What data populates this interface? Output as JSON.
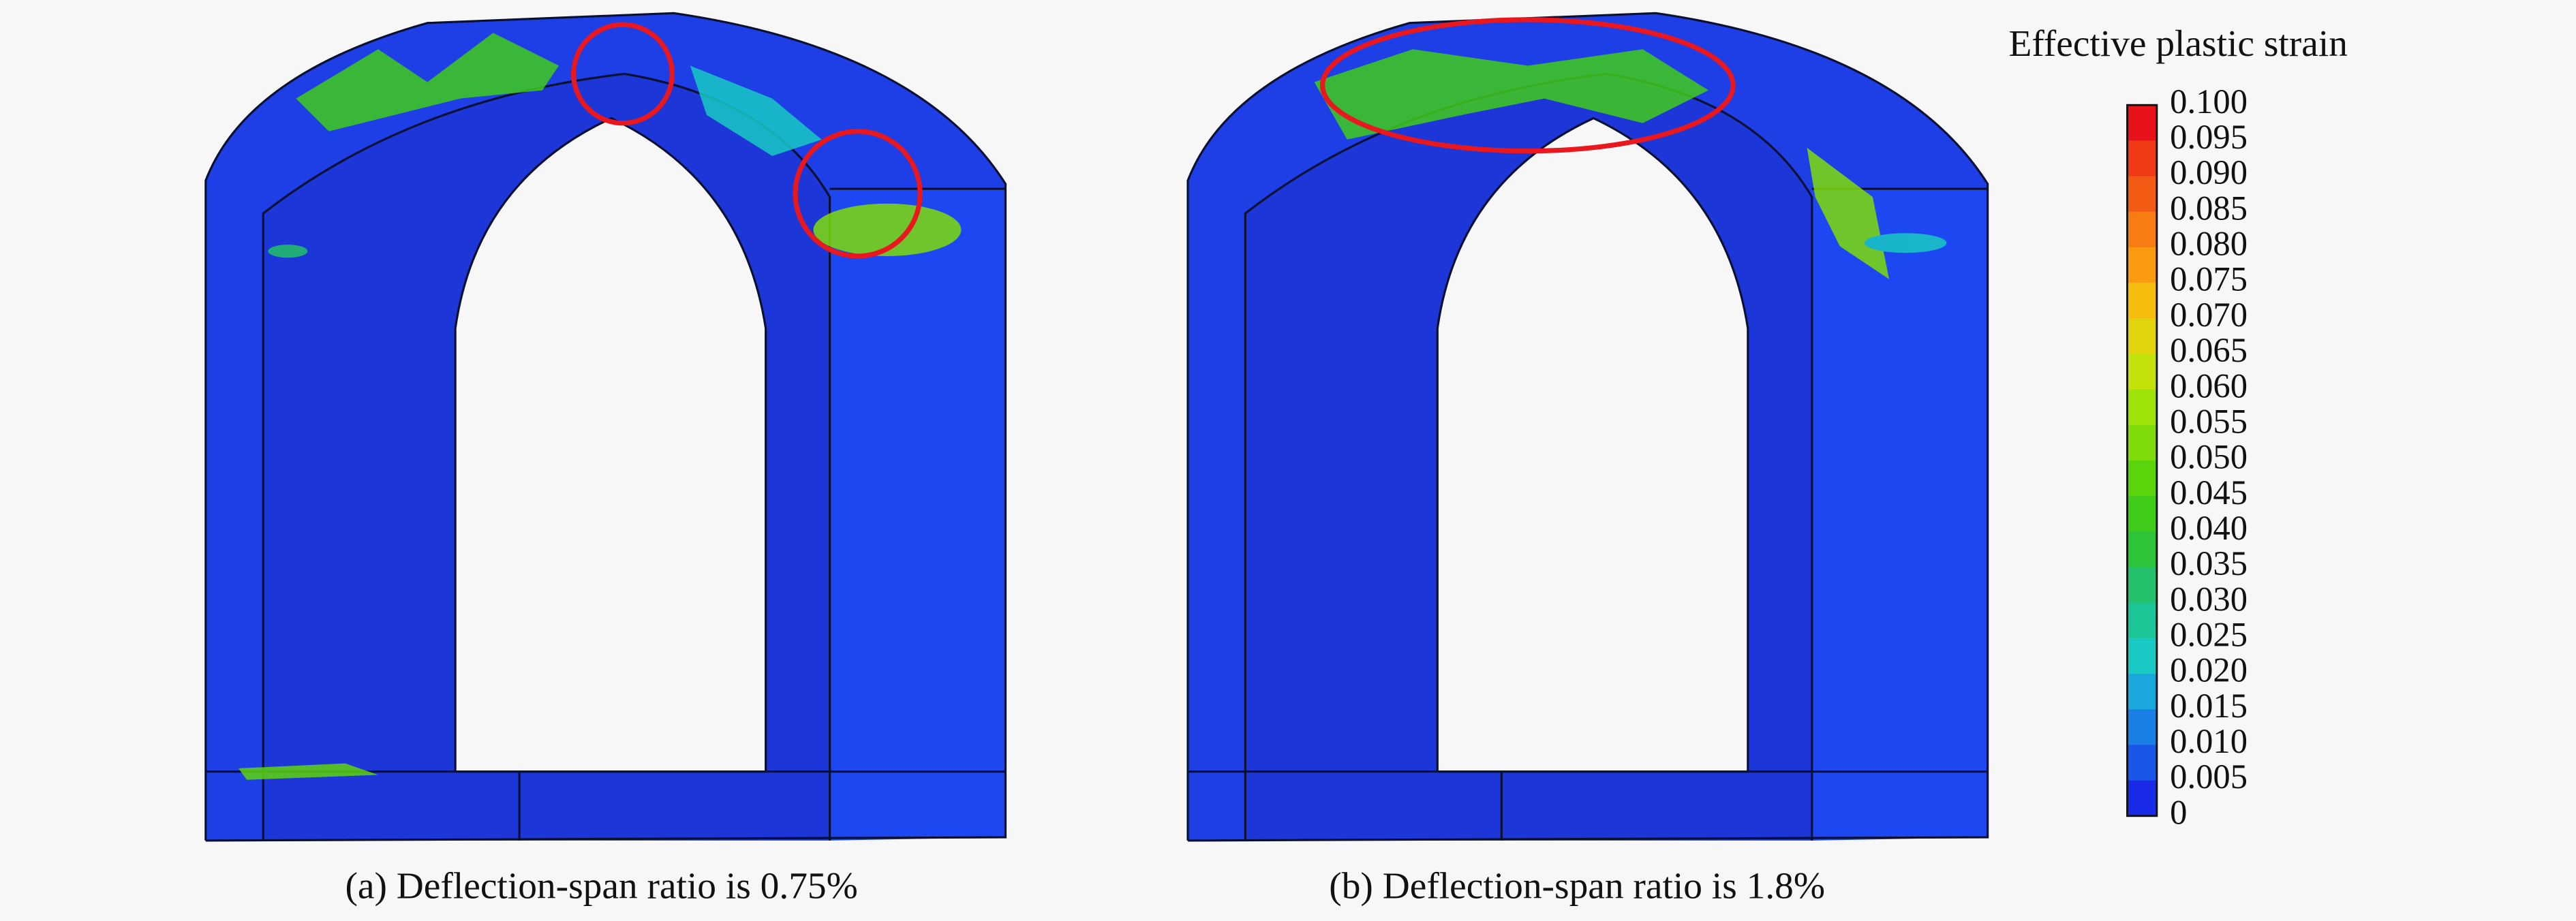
{
  "legend": {
    "title": "Effective plastic strain",
    "labels": [
      "0.100",
      "0.095",
      "0.090",
      "0.085",
      "0.080",
      "0.075",
      "0.070",
      "0.065",
      "0.060",
      "0.055",
      "0.050",
      "0.045",
      "0.040",
      "0.035",
      "0.030",
      "0.025",
      "0.020",
      "0.015",
      "0.010",
      "0.005",
      "0"
    ],
    "colors": [
      "#e8121b",
      "#ef3a15",
      "#f35a14",
      "#f77c12",
      "#f99a10",
      "#f5be0e",
      "#e2d40c",
      "#c2e20a",
      "#9fe30a",
      "#7fdc0a",
      "#5cd40c",
      "#3fcb1a",
      "#2ec43a",
      "#22c16a",
      "#1cc596",
      "#18c9c4",
      "#1aa8dd",
      "#1a80e6",
      "#1a56e8",
      "#1a2be8"
    ]
  },
  "captions": [
    "(a) Deflection-span ratio is 0.75%",
    "(b) Deflection-span ratio is 1.8%"
  ]
}
